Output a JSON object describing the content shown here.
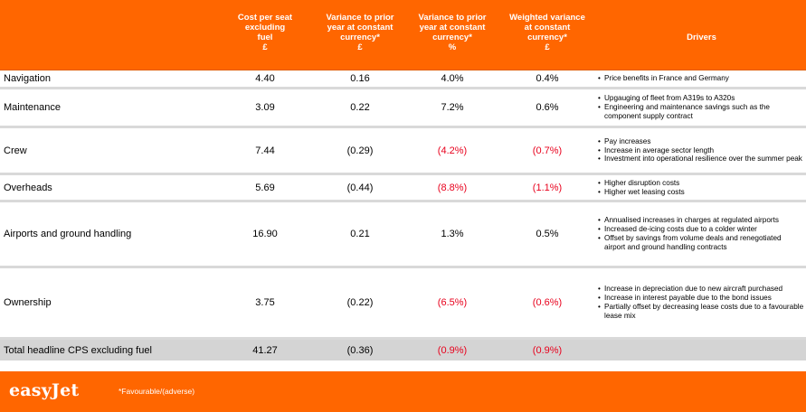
{
  "header": {
    "col1": "Cost per seat\nexcluding\nfuel\n£",
    "col2": "Variance to prior\nyear at constant\ncurrency*\n£",
    "col3": "Variance to prior\nyear at constant\ncurrency*\n%",
    "col4": "Weighted variance\nat constant\ncurrency*\n£",
    "drivers": "Drivers"
  },
  "rows": [
    {
      "label": "Navigation",
      "cps": "4.40",
      "var_gbp": "0.16",
      "var_pct": "4.0%",
      "weighted": "0.4%",
      "drivers": [
        "Price benefits in France and Germany"
      ]
    },
    {
      "label": "Maintenance",
      "cps": "3.09",
      "var_gbp": "0.22",
      "var_pct": "7.2%",
      "weighted": "0.6%",
      "drivers": [
        "Upgauging of fleet from A319s to A320s",
        "Engineering and maintenance savings such as the component supply contract"
      ]
    },
    {
      "label": "Crew",
      "cps": "7.44",
      "var_gbp": "(0.29)",
      "var_pct": "(4.2%)",
      "weighted": "(0.7%)",
      "drivers": [
        "Pay increases",
        "Increase in average sector length",
        "Investment into operational resilience over the summer peak"
      ]
    },
    {
      "label": "Overheads",
      "cps": "5.69",
      "var_gbp": "(0.44)",
      "var_pct": "(8.8%)",
      "weighted": "(1.1%)",
      "drivers": [
        "Higher disruption costs",
        "Higher wet leasing costs"
      ]
    },
    {
      "label": "Airports and ground handling",
      "cps": "16.90",
      "var_gbp": "0.21",
      "var_pct": "1.3%",
      "weighted": "0.5%",
      "drivers": [
        "Annualised increases in charges at regulated airports",
        "Increased de-icing costs due to a colder winter",
        "Offset by savings from volume deals and renegotiated airport and ground handling contracts"
      ]
    },
    {
      "label": "Ownership",
      "cps": "3.75",
      "var_gbp": "(0.22)",
      "var_pct": "(6.5%)",
      "weighted": "(0.6%)",
      "drivers": [
        "Increase in depreciation due to new aircraft purchased",
        "Increase in interest payable due to the bond issues",
        "Partially offset by decreasing lease costs due to a favourable lease mix"
      ]
    }
  ],
  "total": {
    "label": "Total headline CPS excluding fuel",
    "cps": "41.27",
    "var_gbp": "(0.36)",
    "var_pct": "(0.9%)",
    "weighted": "(0.9%)"
  },
  "footer": {
    "logo": "easyJet",
    "note": "*Favourable/(adverse)"
  },
  "colors": {
    "brand_orange": "#ff6600",
    "adverse_red": "#e8001c",
    "total_grey": "#d4d4d4"
  }
}
